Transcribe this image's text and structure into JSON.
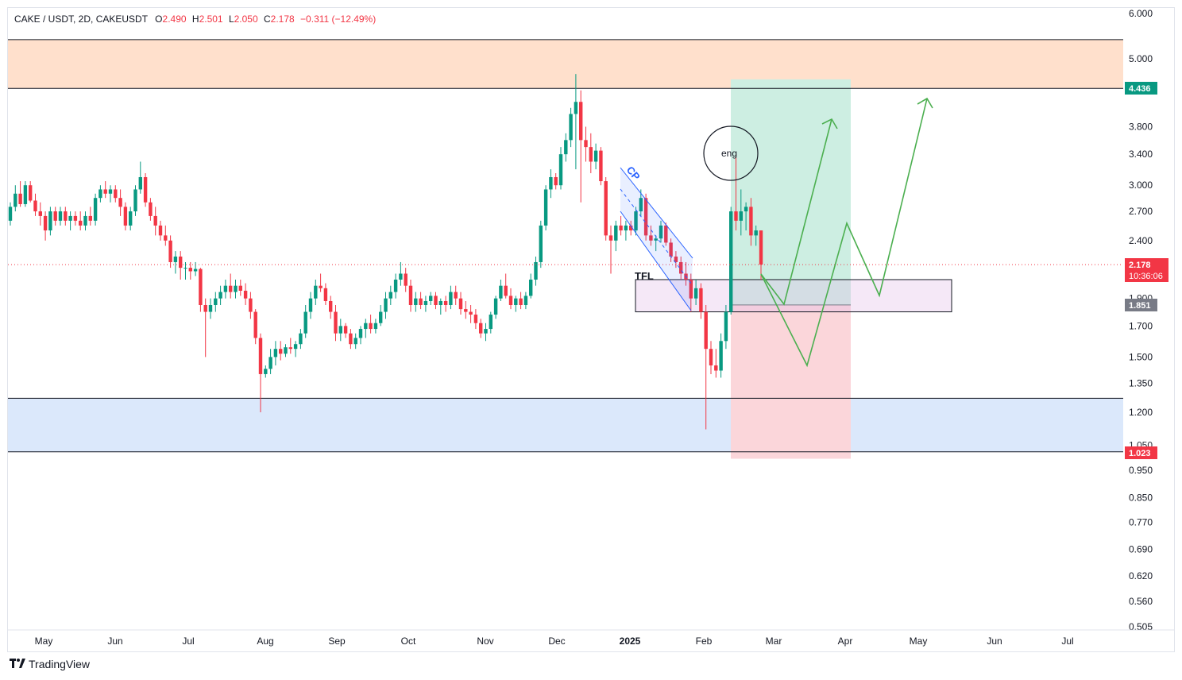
{
  "legend": {
    "symbol": "CAKE / USDT, 2D, CAKEUSDT",
    "open_label": "O",
    "open": "2.490",
    "high_label": "H",
    "high": "2.501",
    "low_label": "L",
    "low": "2.050",
    "close_label": "C",
    "close": "2.178",
    "change": "−0.311 (−12.49%)"
  },
  "price_axis": [
    "6.000",
    "5.000",
    "3.800",
    "3.400",
    "3.000",
    "2.700",
    "2.400",
    "1.700",
    "1.500",
    "1.350",
    "1.200",
    "0.950",
    "0.850",
    "0.770",
    "0.690",
    "0.620",
    "0.560",
    "0.505"
  ],
  "price_axis_hidden": [
    "1.900",
    "1.050"
  ],
  "badges": {
    "resistance": "4.436",
    "last_price": "2.178",
    "countdown": "10:36:06",
    "entry": "1.851",
    "support": "1.023"
  },
  "time_axis": [
    "May",
    "Jun",
    "Jul",
    "Aug",
    "Sep",
    "Oct",
    "Nov",
    "Dec",
    "2025",
    "Feb",
    "Mar",
    "Apr",
    "May",
    "Jun",
    "Jul"
  ],
  "annotations": {
    "channel_label": "CP",
    "tfl_label": "TFL",
    "eng_label": "eng"
  },
  "colors": {
    "up": "#089981",
    "down": "#f23645",
    "resistance_zone": "#ffe0cc",
    "support_zone": "#dbe8fb",
    "target_zone": "#cdeee2",
    "stop_zone": "#fbd6da",
    "projection": "#4caf50",
    "channel": "#2962ff",
    "last_price_badge": "#f23645",
    "resistance_badge": "#089981",
    "entry_badge": "#787b86"
  },
  "footer": {
    "brand": "TradingView"
  },
  "chart_data": {
    "type": "candlestick",
    "scale": "log",
    "ylim": [
      0.505,
      6.0
    ],
    "candles": [
      {
        "o": 2.6,
        "h": 2.8,
        "l": 2.55,
        "c": 2.75
      },
      {
        "o": 2.75,
        "h": 3.0,
        "l": 2.7,
        "c": 2.9
      },
      {
        "o": 2.9,
        "h": 3.05,
        "l": 2.75,
        "c": 2.78
      },
      {
        "o": 2.78,
        "h": 3.05,
        "l": 2.75,
        "c": 3.0
      },
      {
        "o": 3.0,
        "h": 3.05,
        "l": 2.8,
        "c": 2.82
      },
      {
        "o": 2.82,
        "h": 2.9,
        "l": 2.65,
        "c": 2.7
      },
      {
        "o": 2.7,
        "h": 2.8,
        "l": 2.55,
        "c": 2.65
      },
      {
        "o": 2.65,
        "h": 2.7,
        "l": 2.4,
        "c": 2.5
      },
      {
        "o": 2.5,
        "h": 2.75,
        "l": 2.45,
        "c": 2.7
      },
      {
        "o": 2.7,
        "h": 2.75,
        "l": 2.55,
        "c": 2.6
      },
      {
        "o": 2.6,
        "h": 2.75,
        "l": 2.55,
        "c": 2.7
      },
      {
        "o": 2.7,
        "h": 2.75,
        "l": 2.55,
        "c": 2.6
      },
      {
        "o": 2.6,
        "h": 2.7,
        "l": 2.5,
        "c": 2.65
      },
      {
        "o": 2.65,
        "h": 2.7,
        "l": 2.55,
        "c": 2.6
      },
      {
        "o": 2.6,
        "h": 2.7,
        "l": 2.5,
        "c": 2.55
      },
      {
        "o": 2.55,
        "h": 2.7,
        "l": 2.5,
        "c": 2.65
      },
      {
        "o": 2.65,
        "h": 2.75,
        "l": 2.55,
        "c": 2.6
      },
      {
        "o": 2.6,
        "h": 2.9,
        "l": 2.55,
        "c": 2.85
      },
      {
        "o": 2.85,
        "h": 3.0,
        "l": 2.8,
        "c": 2.95
      },
      {
        "o": 2.95,
        "h": 3.05,
        "l": 2.85,
        "c": 2.9
      },
      {
        "o": 2.9,
        "h": 3.0,
        "l": 2.8,
        "c": 2.95
      },
      {
        "o": 2.95,
        "h": 3.0,
        "l": 2.8,
        "c": 2.85
      },
      {
        "o": 2.85,
        "h": 2.95,
        "l": 2.65,
        "c": 2.75
      },
      {
        "o": 2.75,
        "h": 2.8,
        "l": 2.5,
        "c": 2.55
      },
      {
        "o": 2.55,
        "h": 2.75,
        "l": 2.5,
        "c": 2.7
      },
      {
        "o": 2.7,
        "h": 3.0,
        "l": 2.65,
        "c": 2.95
      },
      {
        "o": 2.95,
        "h": 3.3,
        "l": 2.9,
        "c": 3.1
      },
      {
        "o": 3.1,
        "h": 3.15,
        "l": 2.75,
        "c": 2.8
      },
      {
        "o": 2.8,
        "h": 2.85,
        "l": 2.6,
        "c": 2.65
      },
      {
        "o": 2.65,
        "h": 2.75,
        "l": 2.45,
        "c": 2.55
      },
      {
        "o": 2.55,
        "h": 2.6,
        "l": 2.4,
        "c": 2.45
      },
      {
        "o": 2.45,
        "h": 2.55,
        "l": 2.35,
        "c": 2.4
      },
      {
        "o": 2.4,
        "h": 2.45,
        "l": 2.15,
        "c": 2.2
      },
      {
        "o": 2.2,
        "h": 2.3,
        "l": 2.1,
        "c": 2.25
      },
      {
        "o": 2.25,
        "h": 2.3,
        "l": 2.05,
        "c": 2.15
      },
      {
        "o": 2.15,
        "h": 2.2,
        "l": 2.05,
        "c": 2.15
      },
      {
        "o": 2.15,
        "h": 2.2,
        "l": 2.05,
        "c": 2.12
      },
      {
        "o": 2.12,
        "h": 2.2,
        "l": 2.08,
        "c": 2.14
      },
      {
        "o": 2.14,
        "h": 2.15,
        "l": 1.8,
        "c": 1.85
      },
      {
        "o": 1.85,
        "h": 1.9,
        "l": 1.5,
        "c": 1.8
      },
      {
        "o": 1.8,
        "h": 1.9,
        "l": 1.75,
        "c": 1.85
      },
      {
        "o": 1.85,
        "h": 1.95,
        "l": 1.8,
        "c": 1.9
      },
      {
        "o": 1.9,
        "h": 2.0,
        "l": 1.85,
        "c": 1.95
      },
      {
        "o": 1.95,
        "h": 2.05,
        "l": 1.9,
        "c": 2.0
      },
      {
        "o": 2.0,
        "h": 2.1,
        "l": 1.9,
        "c": 1.95
      },
      {
        "o": 1.95,
        "h": 2.05,
        "l": 1.9,
        "c": 2.0
      },
      {
        "o": 2.0,
        "h": 2.05,
        "l": 1.92,
        "c": 1.96
      },
      {
        "o": 1.96,
        "h": 2.02,
        "l": 1.85,
        "c": 1.9
      },
      {
        "o": 1.9,
        "h": 1.95,
        "l": 1.75,
        "c": 1.8
      },
      {
        "o": 1.8,
        "h": 1.82,
        "l": 1.58,
        "c": 1.62
      },
      {
        "o": 1.62,
        "h": 1.65,
        "l": 1.2,
        "c": 1.4
      },
      {
        "o": 1.4,
        "h": 1.45,
        "l": 1.38,
        "c": 1.43
      },
      {
        "o": 1.43,
        "h": 1.55,
        "l": 1.4,
        "c": 1.5
      },
      {
        "o": 1.5,
        "h": 1.6,
        "l": 1.45,
        "c": 1.55
      },
      {
        "o": 1.55,
        "h": 1.6,
        "l": 1.48,
        "c": 1.52
      },
      {
        "o": 1.52,
        "h": 1.58,
        "l": 1.5,
        "c": 1.56
      },
      {
        "o": 1.56,
        "h": 1.62,
        "l": 1.52,
        "c": 1.55
      },
      {
        "o": 1.55,
        "h": 1.6,
        "l": 1.5,
        "c": 1.58
      },
      {
        "o": 1.58,
        "h": 1.68,
        "l": 1.55,
        "c": 1.65
      },
      {
        "o": 1.65,
        "h": 1.85,
        "l": 1.62,
        "c": 1.8
      },
      {
        "o": 1.8,
        "h": 1.95,
        "l": 1.75,
        "c": 1.9
      },
      {
        "o": 1.9,
        "h": 2.05,
        "l": 1.85,
        "c": 2.0
      },
      {
        "o": 2.0,
        "h": 2.1,
        "l": 1.95,
        "c": 1.98
      },
      {
        "o": 1.98,
        "h": 2.02,
        "l": 1.85,
        "c": 1.88
      },
      {
        "o": 1.88,
        "h": 1.92,
        "l": 1.75,
        "c": 1.8
      },
      {
        "o": 1.8,
        "h": 1.85,
        "l": 1.6,
        "c": 1.65
      },
      {
        "o": 1.65,
        "h": 1.75,
        "l": 1.6,
        "c": 1.7
      },
      {
        "o": 1.7,
        "h": 1.72,
        "l": 1.62,
        "c": 1.65
      },
      {
        "o": 1.65,
        "h": 1.68,
        "l": 1.55,
        "c": 1.58
      },
      {
        "o": 1.58,
        "h": 1.65,
        "l": 1.55,
        "c": 1.62
      },
      {
        "o": 1.62,
        "h": 1.7,
        "l": 1.58,
        "c": 1.68
      },
      {
        "o": 1.68,
        "h": 1.75,
        "l": 1.62,
        "c": 1.72
      },
      {
        "o": 1.72,
        "h": 1.78,
        "l": 1.65,
        "c": 1.68
      },
      {
        "o": 1.68,
        "h": 1.75,
        "l": 1.65,
        "c": 1.72
      },
      {
        "o": 1.72,
        "h": 1.85,
        "l": 1.7,
        "c": 1.8
      },
      {
        "o": 1.8,
        "h": 1.95,
        "l": 1.75,
        "c": 1.9
      },
      {
        "o": 1.9,
        "h": 2.0,
        "l": 1.85,
        "c": 1.95
      },
      {
        "o": 1.95,
        "h": 2.1,
        "l": 1.9,
        "c": 2.05
      },
      {
        "o": 2.05,
        "h": 2.2,
        "l": 2.0,
        "c": 2.1
      },
      {
        "o": 2.1,
        "h": 2.15,
        "l": 1.95,
        "c": 2.0
      },
      {
        "o": 2.0,
        "h": 2.05,
        "l": 1.8,
        "c": 1.85
      },
      {
        "o": 1.85,
        "h": 1.95,
        "l": 1.8,
        "c": 1.9
      },
      {
        "o": 1.9,
        "h": 1.95,
        "l": 1.82,
        "c": 1.85
      },
      {
        "o": 1.85,
        "h": 1.92,
        "l": 1.8,
        "c": 1.88
      },
      {
        "o": 1.88,
        "h": 1.95,
        "l": 1.85,
        "c": 1.92
      },
      {
        "o": 1.92,
        "h": 1.95,
        "l": 1.82,
        "c": 1.85
      },
      {
        "o": 1.85,
        "h": 1.9,
        "l": 1.78,
        "c": 1.88
      },
      {
        "o": 1.88,
        "h": 1.92,
        "l": 1.8,
        "c": 1.85
      },
      {
        "o": 1.85,
        "h": 2.0,
        "l": 1.82,
        "c": 1.95
      },
      {
        "o": 1.95,
        "h": 2.0,
        "l": 1.85,
        "c": 1.9
      },
      {
        "o": 1.9,
        "h": 1.95,
        "l": 1.78,
        "c": 1.82
      },
      {
        "o": 1.82,
        "h": 1.88,
        "l": 1.75,
        "c": 1.8
      },
      {
        "o": 1.8,
        "h": 1.85,
        "l": 1.72,
        "c": 1.78
      },
      {
        "o": 1.78,
        "h": 1.82,
        "l": 1.68,
        "c": 1.72
      },
      {
        "o": 1.72,
        "h": 1.75,
        "l": 1.62,
        "c": 1.65
      },
      {
        "o": 1.65,
        "h": 1.72,
        "l": 1.6,
        "c": 1.68
      },
      {
        "o": 1.68,
        "h": 1.8,
        "l": 1.65,
        "c": 1.78
      },
      {
        "o": 1.78,
        "h": 1.92,
        "l": 1.75,
        "c": 1.9
      },
      {
        "o": 1.9,
        "h": 2.05,
        "l": 1.88,
        "c": 2.0
      },
      {
        "o": 2.0,
        "h": 2.1,
        "l": 1.9,
        "c": 1.92
      },
      {
        "o": 1.92,
        "h": 1.98,
        "l": 1.82,
        "c": 1.85
      },
      {
        "o": 1.85,
        "h": 1.92,
        "l": 1.8,
        "c": 1.9
      },
      {
        "o": 1.9,
        "h": 1.95,
        "l": 1.82,
        "c": 1.85
      },
      {
        "o": 1.85,
        "h": 1.95,
        "l": 1.82,
        "c": 1.92
      },
      {
        "o": 1.92,
        "h": 2.1,
        "l": 1.9,
        "c": 2.05
      },
      {
        "o": 2.05,
        "h": 2.25,
        "l": 2.0,
        "c": 2.2
      },
      {
        "o": 2.2,
        "h": 2.6,
        "l": 2.15,
        "c": 2.55
      },
      {
        "o": 2.55,
        "h": 3.0,
        "l": 2.5,
        "c": 2.95
      },
      {
        "o": 2.95,
        "h": 3.2,
        "l": 2.85,
        "c": 3.1
      },
      {
        "o": 3.1,
        "h": 3.15,
        "l": 2.95,
        "c": 3.0
      },
      {
        "o": 3.0,
        "h": 3.5,
        "l": 2.95,
        "c": 3.4
      },
      {
        "o": 3.4,
        "h": 3.7,
        "l": 3.3,
        "c": 3.6
      },
      {
        "o": 3.6,
        "h": 4.1,
        "l": 3.5,
        "c": 4.0
      },
      {
        "o": 4.0,
        "h": 4.7,
        "l": 3.2,
        "c": 4.2
      },
      {
        "o": 4.2,
        "h": 4.4,
        "l": 2.8,
        "c": 3.6
      },
      {
        "o": 3.6,
        "h": 3.8,
        "l": 3.3,
        "c": 3.5
      },
      {
        "o": 3.5,
        "h": 3.7,
        "l": 3.15,
        "c": 3.3
      },
      {
        "o": 3.3,
        "h": 3.55,
        "l": 3.2,
        "c": 3.45
      },
      {
        "o": 3.45,
        "h": 3.5,
        "l": 3.0,
        "c": 3.05
      },
      {
        "o": 3.05,
        "h": 3.1,
        "l": 2.4,
        "c": 2.45
      },
      {
        "o": 2.45,
        "h": 2.55,
        "l": 2.1,
        "c": 2.4
      },
      {
        "o": 2.4,
        "h": 2.6,
        "l": 2.3,
        "c": 2.55
      },
      {
        "o": 2.55,
        "h": 2.65,
        "l": 2.45,
        "c": 2.5
      },
      {
        "o": 2.5,
        "h": 2.6,
        "l": 2.4,
        "c": 2.55
      },
      {
        "o": 2.55,
        "h": 2.6,
        "l": 2.45,
        "c": 2.5
      },
      {
        "o": 2.5,
        "h": 2.75,
        "l": 2.45,
        "c": 2.7
      },
      {
        "o": 2.7,
        "h": 2.95,
        "l": 2.65,
        "c": 2.85
      },
      {
        "o": 2.85,
        "h": 2.9,
        "l": 2.4,
        "c": 2.45
      },
      {
        "o": 2.45,
        "h": 2.55,
        "l": 2.35,
        "c": 2.4
      },
      {
        "o": 2.4,
        "h": 2.45,
        "l": 2.3,
        "c": 2.42
      },
      {
        "o": 2.42,
        "h": 2.6,
        "l": 2.38,
        "c": 2.55
      },
      {
        "o": 2.55,
        "h": 2.58,
        "l": 2.35,
        "c": 2.38
      },
      {
        "o": 2.38,
        "h": 2.42,
        "l": 2.2,
        "c": 2.25
      },
      {
        "o": 2.25,
        "h": 2.3,
        "l": 2.15,
        "c": 2.2
      },
      {
        "o": 2.2,
        "h": 2.25,
        "l": 2.05,
        "c": 2.1
      },
      {
        "o": 2.1,
        "h": 2.2,
        "l": 2.0,
        "c": 2.05
      },
      {
        "o": 2.05,
        "h": 2.1,
        "l": 1.8,
        "c": 1.9
      },
      {
        "o": 1.9,
        "h": 2.05,
        "l": 1.85,
        "c": 1.98
      },
      {
        "o": 1.98,
        "h": 2.02,
        "l": 1.75,
        "c": 1.8
      },
      {
        "o": 1.8,
        "h": 1.85,
        "l": 1.12,
        "c": 1.55
      },
      {
        "o": 1.55,
        "h": 1.6,
        "l": 1.4,
        "c": 1.45
      },
      {
        "o": 1.45,
        "h": 1.55,
        "l": 1.38,
        "c": 1.42
      },
      {
        "o": 1.42,
        "h": 1.65,
        "l": 1.38,
        "c": 1.6
      },
      {
        "o": 1.6,
        "h": 1.85,
        "l": 1.55,
        "c": 1.8
      },
      {
        "o": 1.8,
        "h": 2.75,
        "l": 1.78,
        "c": 2.7
      },
      {
        "o": 2.7,
        "h": 3.4,
        "l": 2.5,
        "c": 2.6
      },
      {
        "o": 2.6,
        "h": 2.95,
        "l": 2.45,
        "c": 2.7
      },
      {
        "o": 2.7,
        "h": 2.8,
        "l": 2.5,
        "c": 2.75
      },
      {
        "o": 2.75,
        "h": 2.85,
        "l": 2.35,
        "c": 2.45
      },
      {
        "o": 2.45,
        "h": 2.55,
        "l": 2.35,
        "c": 2.5
      },
      {
        "o": 2.5,
        "h": 2.5,
        "l": 2.05,
        "c": 2.178
      }
    ],
    "zones": {
      "resistance": [
        4.436,
        5.4
      ],
      "support": [
        1.023,
        1.27
      ],
      "entry_box": [
        1.8,
        2.05
      ],
      "target": [
        1.851,
        4.6
      ],
      "stop": [
        0.995,
        1.851
      ]
    },
    "lines": [
      5.4,
      4.436,
      1.27,
      1.023
    ]
  }
}
